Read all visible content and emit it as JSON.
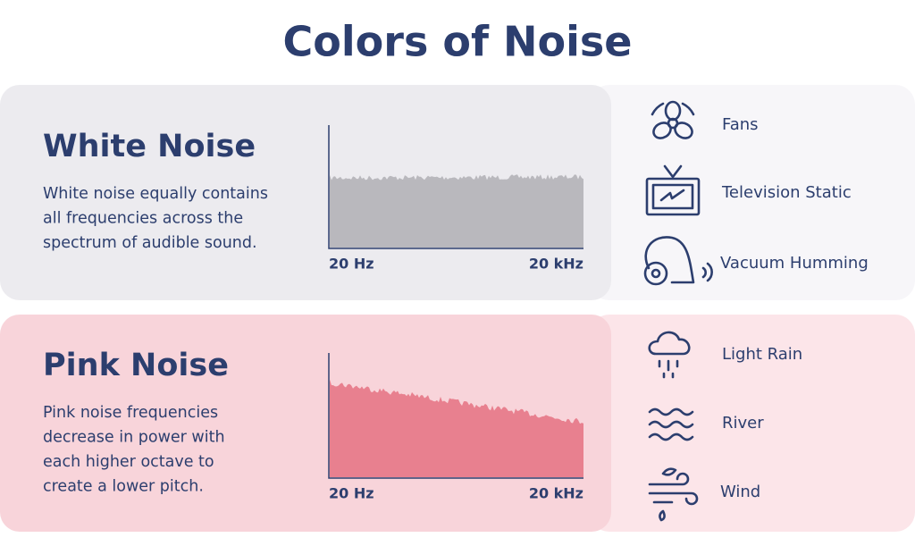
{
  "title": "Colors of Noise",
  "sections": [
    {
      "heading": "White Noise",
      "description": [
        "White noise equally contains",
        "all frequencies across the",
        "spectrum of audible sound."
      ],
      "axis_start": "20 Hz",
      "axis_end": "20 kHz",
      "examples": [
        "Fans",
        "Television Static",
        "Vacuum Humming"
      ]
    },
    {
      "heading": "Pink Noise",
      "description": [
        "Pink noise frequencies",
        "decrease in power with",
        "each higher octave to",
        "create a lower pitch."
      ],
      "axis_start": "20 Hz",
      "axis_end": "20 kHz",
      "examples": [
        "Light Rain",
        "River",
        "Wind"
      ]
    }
  ]
}
